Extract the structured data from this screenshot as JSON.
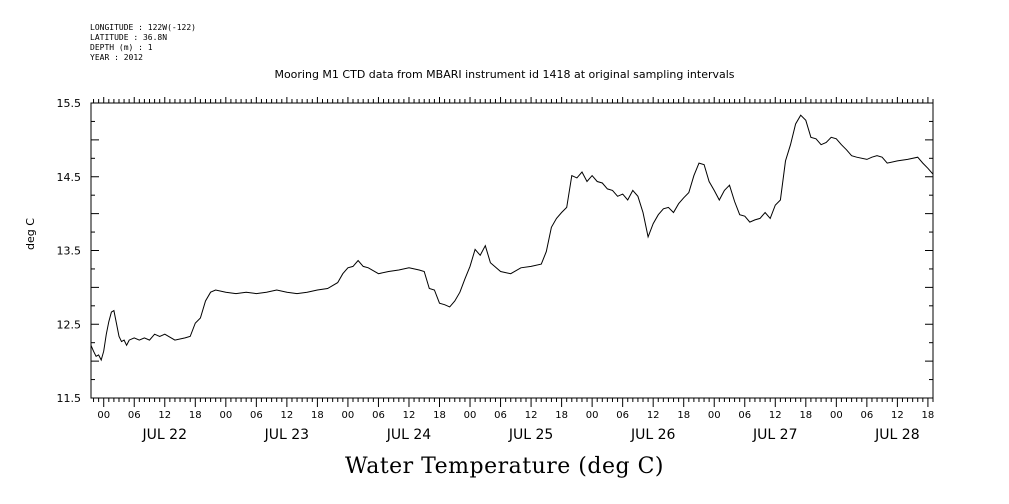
{
  "header": {
    "longitude": "LONGITUDE : 122W(-122)",
    "latitude": "LATITUDE : 36.8N",
    "depth": "DEPTH (m) : 1",
    "year": "YEAR : 2012"
  },
  "chart_data": {
    "type": "line",
    "title": "Mooring M1 CTD data from MBARI instrument id 1418 at original sampling intervals",
    "bottom_title": "Water Temperature (deg C)",
    "ylabel": "deg C",
    "xlabel": "",
    "ylim": [
      11.5,
      15.5
    ],
    "yticks": [
      "11.5",
      "12.5",
      "13.5",
      "14.5",
      "15.5"
    ],
    "xlim_hours_from_jul22_00": [
      -2.5,
      163
    ],
    "day_labels": [
      "JUL 22",
      "JUL 23",
      "JUL 24",
      "JUL 25",
      "JUL 26",
      "JUL 27",
      "JUL 28"
    ],
    "hour_tick_labels": [
      "00",
      "06",
      "12",
      "18"
    ],
    "grid": false,
    "series": [
      {
        "values_hours_from_jul22_00_vs_degC": [
          [
            -2.5,
            12.2
          ],
          [
            -2,
            12.15
          ],
          [
            -1.5,
            12.05
          ],
          [
            -1,
            12.1
          ],
          [
            -0.5,
            12.0
          ],
          [
            0,
            12.15
          ],
          [
            0.5,
            12.35
          ],
          [
            1,
            12.55
          ],
          [
            1.5,
            12.65
          ],
          [
            2,
            12.7
          ],
          [
            2.5,
            12.5
          ],
          [
            3,
            12.35
          ],
          [
            3.5,
            12.25
          ],
          [
            4,
            12.3
          ],
          [
            4.5,
            12.2
          ],
          [
            5,
            12.3
          ],
          [
            6,
            12.3
          ],
          [
            7,
            12.3
          ],
          [
            8,
            12.3
          ],
          [
            9,
            12.3
          ],
          [
            10,
            12.35
          ],
          [
            11,
            12.35
          ],
          [
            12,
            12.35
          ],
          [
            14,
            12.3
          ],
          [
            16,
            12.3
          ],
          [
            17,
            12.35
          ],
          [
            18,
            12.5
          ],
          [
            19,
            12.6
          ],
          [
            20,
            12.8
          ],
          [
            21,
            12.95
          ],
          [
            22,
            12.95
          ],
          [
            24,
            12.95
          ],
          [
            26,
            12.9
          ],
          [
            28,
            12.95
          ],
          [
            30,
            12.9
          ],
          [
            32,
            12.95
          ],
          [
            34,
            12.95
          ],
          [
            36,
            12.95
          ],
          [
            38,
            12.9
          ],
          [
            40,
            12.95
          ],
          [
            42,
            12.95
          ],
          [
            44,
            13.0
          ],
          [
            46,
            13.05
          ],
          [
            47,
            13.2
          ],
          [
            48,
            13.25
          ],
          [
            49,
            13.3
          ],
          [
            50,
            13.35
          ],
          [
            51,
            13.3
          ],
          [
            52,
            13.25
          ],
          [
            54,
            13.2
          ],
          [
            56,
            13.2
          ],
          [
            58,
            13.25
          ],
          [
            60,
            13.25
          ],
          [
            62,
            13.25
          ],
          [
            63,
            13.2
          ],
          [
            64,
            13.0
          ],
          [
            65,
            12.95
          ],
          [
            66,
            12.8
          ],
          [
            67,
            12.75
          ],
          [
            68,
            12.75
          ],
          [
            69,
            12.8
          ],
          [
            70,
            12.95
          ],
          [
            71,
            13.1
          ],
          [
            72,
            13.3
          ],
          [
            73,
            13.5
          ],
          [
            74,
            13.45
          ],
          [
            75,
            13.55
          ],
          [
            76,
            13.35
          ],
          [
            78,
            13.2
          ],
          [
            80,
            13.2
          ],
          [
            82,
            13.25
          ],
          [
            84,
            13.3
          ],
          [
            86,
            13.3
          ],
          [
            87,
            13.5
          ],
          [
            88,
            13.8
          ],
          [
            89,
            13.95
          ],
          [
            90,
            14.0
          ],
          [
            91,
            14.1
          ],
          [
            92,
            14.5
          ],
          [
            93,
            14.5
          ],
          [
            94,
            14.55
          ],
          [
            95,
            14.45
          ],
          [
            96,
            14.5
          ],
          [
            97,
            14.45
          ],
          [
            98,
            14.4
          ],
          [
            99,
            14.35
          ],
          [
            100,
            14.3
          ],
          [
            101,
            14.25
          ],
          [
            102,
            14.25
          ],
          [
            103,
            14.2
          ],
          [
            104,
            14.3
          ],
          [
            105,
            14.25
          ],
          [
            106,
            14.0
          ],
          [
            107,
            13.7
          ],
          [
            108,
            13.85
          ],
          [
            109,
            14.0
          ],
          [
            110,
            14.05
          ],
          [
            111,
            14.1
          ],
          [
            112,
            14.0
          ],
          [
            113,
            14.15
          ],
          [
            114,
            14.2
          ],
          [
            115,
            14.3
          ],
          [
            116,
            14.5
          ],
          [
            117,
            14.7
          ],
          [
            118,
            14.65
          ],
          [
            119,
            14.45
          ],
          [
            120,
            14.3
          ],
          [
            121,
            14.2
          ],
          [
            122,
            14.3
          ],
          [
            123,
            14.4
          ],
          [
            124,
            14.15
          ],
          [
            125,
            14.0
          ],
          [
            126,
            13.95
          ],
          [
            127,
            13.9
          ],
          [
            128,
            13.9
          ],
          [
            129,
            13.95
          ],
          [
            130,
            14.0
          ],
          [
            131,
            13.95
          ],
          [
            132,
            14.1
          ],
          [
            133,
            14.2
          ],
          [
            134,
            14.7
          ],
          [
            135,
            14.95
          ],
          [
            136,
            15.2
          ],
          [
            137,
            15.35
          ],
          [
            138,
            15.25
          ],
          [
            139,
            15.05
          ],
          [
            140,
            15.0
          ],
          [
            141,
            14.95
          ],
          [
            142,
            14.95
          ],
          [
            143,
            15.05
          ],
          [
            144,
            15.0
          ],
          [
            145,
            14.95
          ],
          [
            146,
            14.85
          ],
          [
            147,
            14.8
          ],
          [
            148,
            14.75
          ],
          [
            150,
            14.75
          ],
          [
            151,
            14.75
          ],
          [
            152,
            14.8
          ],
          [
            153,
            14.75
          ],
          [
            154,
            14.7
          ],
          [
            156,
            14.7
          ],
          [
            158,
            14.75
          ],
          [
            160,
            14.75
          ],
          [
            161,
            14.7
          ],
          [
            162,
            14.6
          ],
          [
            163,
            14.55
          ]
        ]
      }
    ]
  }
}
